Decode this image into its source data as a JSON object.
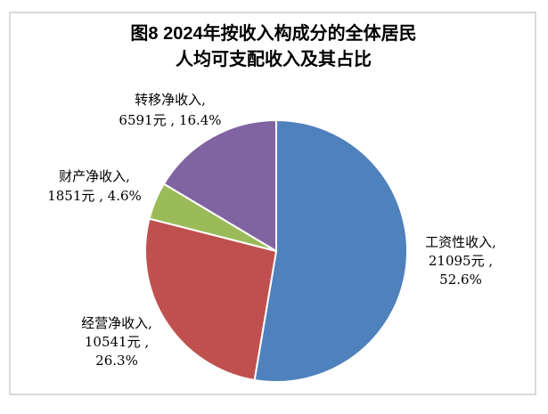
{
  "chart": {
    "title_line1": "图8  2024年按收入构成分的全体居民",
    "title_line2": "人均可支配收入及其占比",
    "frame_border_color": "#d9d9d9",
    "background_color": "#ffffff"
  },
  "labels": {
    "wage": {
      "line1": "工资性收入,",
      "line2": "21095元 ,",
      "line3": "52.6%"
    },
    "business": {
      "line1": "经营净收入,",
      "line2": "10541元 ,",
      "line3": "26.3%"
    },
    "property": {
      "line1": "财产净收入,",
      "line2": "1851元 , 4.6%"
    },
    "transfer": {
      "line1": "转移净收入,",
      "line2": "6591元 , 16.4%"
    }
  },
  "chart_data": {
    "type": "pie",
    "title": "图8 2024年按收入构成分的全体居民人均可支配收入及其占比",
    "categories": [
      "工资性收入",
      "经营净收入",
      "财产净收入",
      "转移净收入"
    ],
    "values": [
      21095,
      10541,
      1851,
      6591
    ],
    "percentages": [
      52.6,
      26.3,
      4.6,
      16.4
    ],
    "unit": "元",
    "colors": [
      "#4F81BD",
      "#C0504D",
      "#9BBB59",
      "#8064A2"
    ],
    "slice_keys": [
      "wage-income",
      "business-net-income",
      "property-net-income",
      "transfer-net-income"
    ],
    "start_angle_deg": 0,
    "direction": "clockwise",
    "slice_separator_color": "#ffffff",
    "legend_position": "none",
    "label_style": "outside: category, value元, percent"
  }
}
